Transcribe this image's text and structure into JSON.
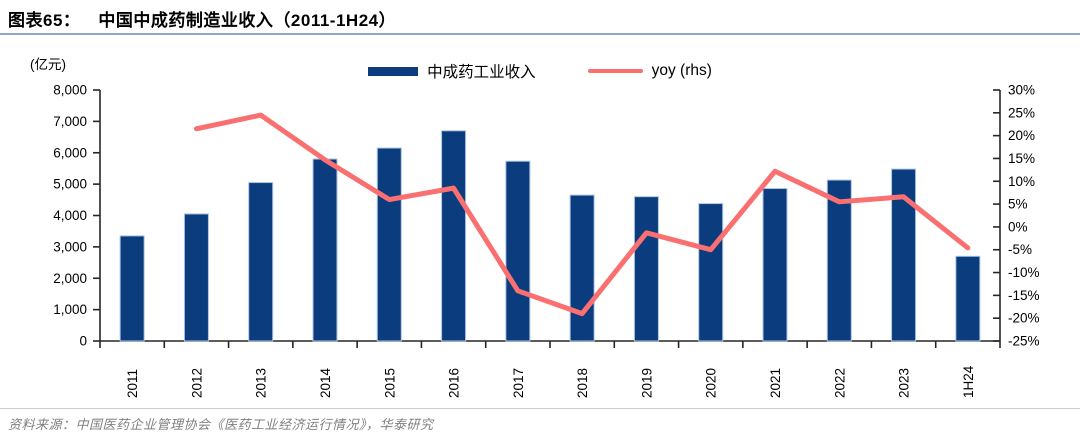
{
  "header": {
    "figure_label": "图表65：",
    "title": "中国中成药制造业收入（2011-1H24）"
  },
  "footer": {
    "source": "资料来源：中国医药企业管理协会《医药工业经济运行情况》，华泰研究"
  },
  "colors": {
    "bar": "#0b3c7d",
    "bar_edge": "#aac6e4",
    "line": "#fa7070",
    "axis": "#262626",
    "title_rule": "#8ea8c9",
    "source_rule": "#cccccc",
    "source_text": "#808080"
  },
  "chart_data": {
    "type": "bar",
    "subtype": "bar+line dual-axis",
    "unit_label": "(亿元)",
    "categories": [
      "2011",
      "2012",
      "2013",
      "2014",
      "2015",
      "2016",
      "2017",
      "2018",
      "2019",
      "2020",
      "2021",
      "2022",
      "2023",
      "1H24"
    ],
    "series": [
      {
        "name": "中成药工业收入",
        "type": "bar",
        "axis": "left",
        "values": [
          3350,
          4050,
          5050,
          5800,
          6150,
          6700,
          5730,
          4650,
          4600,
          4380,
          4860,
          5130,
          5480,
          2700
        ]
      },
      {
        "name": "yoy (rhs)",
        "type": "line",
        "axis": "right",
        "values": [
          null,
          21.5,
          24.5,
          14.7,
          6.0,
          8.5,
          -14.0,
          -19.0,
          -1.3,
          -5.0,
          12.2,
          5.5,
          6.6,
          -4.6
        ]
      }
    ],
    "legend": [
      {
        "name": "中成药工业收入",
        "type": "bar"
      },
      {
        "name": "yoy (rhs)",
        "type": "line"
      }
    ],
    "left_axis": {
      "min": 0,
      "max": 8000,
      "step": 1000,
      "tick_labels": [
        "8,000",
        "7,000",
        "6,000",
        "5,000",
        "4,000",
        "3,000",
        "2,000",
        "1,000",
        "0"
      ]
    },
    "right_axis": {
      "min": -25,
      "max": 30,
      "step": 5,
      "tick_labels": [
        "30%",
        "25%",
        "20%",
        "15%",
        "10%",
        "5%",
        "0%",
        "-5%",
        "-10%",
        "-15%",
        "-20%",
        "-25%"
      ]
    },
    "grid": false,
    "legend_position": "top-center"
  }
}
